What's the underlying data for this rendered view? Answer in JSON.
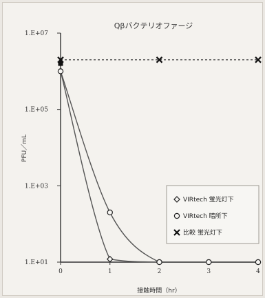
{
  "chart_data": {
    "type": "line",
    "title": "Qβバクテリオファージ",
    "xlabel": "接触時間（hr）",
    "ylabel": "PFU／mL",
    "x_ticks": [
      "0",
      "1",
      "2",
      "3",
      "4"
    ],
    "y_ticks": [
      "1.E+01",
      "1.E+03",
      "1.E+05",
      "1.E+07"
    ],
    "xlim": [
      0,
      4
    ],
    "ylim_log10": [
      1,
      7
    ],
    "y_scale": "log",
    "grid": false,
    "legend_position": "bottom-right",
    "series": [
      {
        "name": "VIRtech 蛍光灯下",
        "marker": "diamond",
        "line_style": "solid",
        "points": [
          [
            0,
            1000000
          ],
          [
            1,
            12
          ],
          [
            2,
            10
          ],
          [
            3,
            10
          ],
          [
            4,
            10
          ]
        ]
      },
      {
        "name": "VIRtech 暗所下",
        "marker": "circle",
        "line_style": "solid",
        "points": [
          [
            0,
            1000000
          ],
          [
            1,
            200
          ],
          [
            2,
            10
          ],
          [
            3,
            10
          ],
          [
            4,
            10
          ]
        ]
      },
      {
        "name": "比較 蛍光灯下",
        "marker": "cross",
        "line_style": "dotted",
        "points": [
          [
            0,
            2000000
          ],
          [
            2,
            2000000
          ],
          [
            4,
            2000000
          ]
        ]
      }
    ]
  }
}
